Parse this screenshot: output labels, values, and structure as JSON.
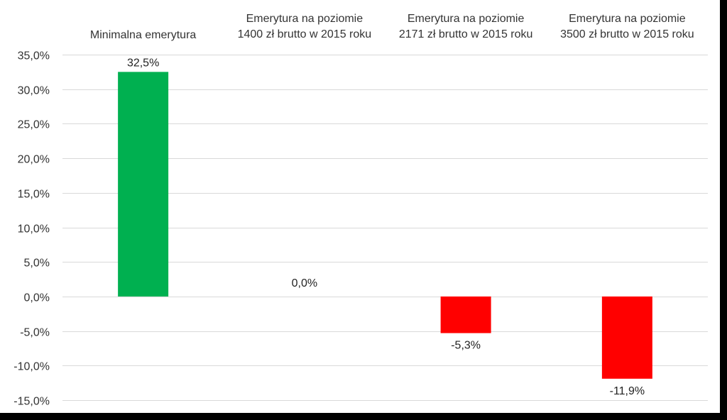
{
  "chart_data": {
    "type": "bar",
    "categories": [
      [
        "Minimalna emerytura"
      ],
      [
        "Emerytura na poziomie",
        "1400 zł brutto w 2015 roku"
      ],
      [
        "Emerytura na poziomie",
        "2171 zł brutto w 2015 roku"
      ],
      [
        "Emerytura na poziomie",
        "3500 zł brutto w 2015 roku"
      ]
    ],
    "values": [
      32.5,
      0.0,
      -5.3,
      -11.9
    ],
    "data_labels": [
      "32,5%",
      "0,0%",
      "-5,3%",
      "-11,9%"
    ],
    "yticks": [
      35,
      30,
      25,
      20,
      15,
      10,
      5,
      0,
      -5,
      -10,
      -15
    ],
    "ytick_labels": [
      "35,0%",
      "30,0%",
      "25,0%",
      "20,0%",
      "15,0%",
      "10,0%",
      "5,0%",
      "0,0%",
      "-5,0%",
      "-10,0%",
      "-15,0%"
    ],
    "ylim": [
      -15,
      35
    ],
    "category_labels_position": "top",
    "grid": true,
    "colors": {
      "positive": "#00b050",
      "negative": "#ff0000",
      "grid": "#d9d9d9"
    },
    "title": "",
    "xlabel": "",
    "ylabel": ""
  }
}
